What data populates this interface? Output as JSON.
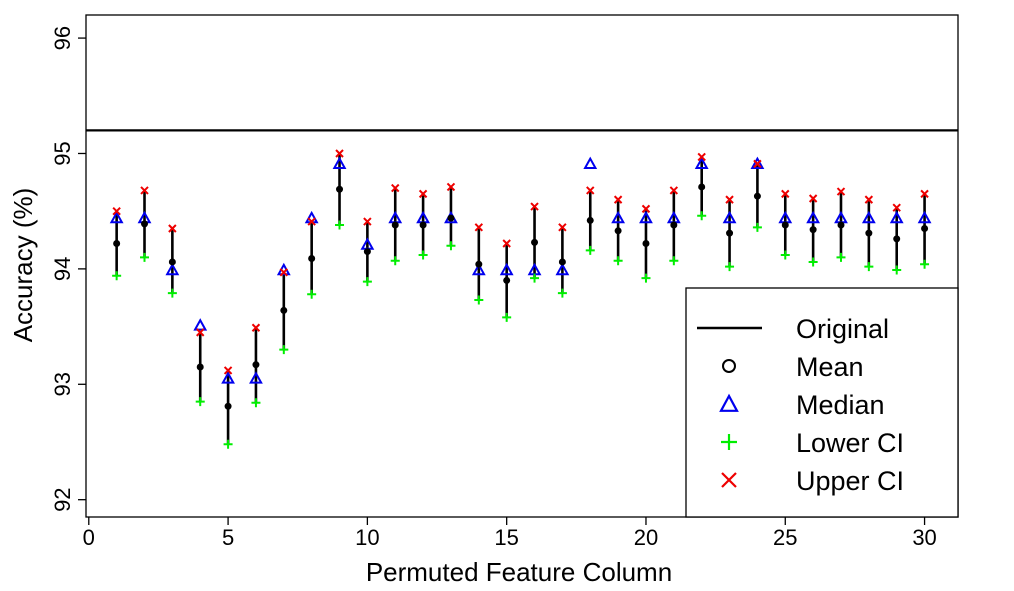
{
  "chart_data": {
    "type": "scatter",
    "xlabel": "Permuted Feature Column",
    "ylabel": "Accuracy (%)",
    "xlim": [
      -0.1,
      31.2
    ],
    "ylim": [
      91.85,
      96.2
    ],
    "xticks": [
      "0",
      "5",
      "10",
      "15",
      "20",
      "25",
      "30"
    ],
    "yticks": [
      "92",
      "93",
      "94",
      "95",
      "96"
    ],
    "grid": false,
    "legend_position": "bottom-right",
    "reference_line": {
      "name": "Original",
      "value": 95.2,
      "color": "#000000"
    },
    "x": [
      1,
      2,
      3,
      4,
      5,
      6,
      7,
      8,
      9,
      10,
      11,
      12,
      13,
      14,
      15,
      16,
      17,
      18,
      19,
      20,
      21,
      22,
      23,
      24,
      25,
      26,
      27,
      28,
      29,
      30
    ],
    "series": [
      {
        "name": "Mean",
        "marker": "circle",
        "color": "#000000",
        "values": [
          94.22,
          94.39,
          94.06,
          93.15,
          92.81,
          93.17,
          93.64,
          94.09,
          94.69,
          94.15,
          94.38,
          94.38,
          94.44,
          94.04,
          93.9,
          94.23,
          94.06,
          94.42,
          94.33,
          94.22,
          94.38,
          94.71,
          94.31,
          94.63,
          94.38,
          94.34,
          94.38,
          94.31,
          94.26,
          94.35
        ]
      },
      {
        "name": "Median",
        "marker": "triangle",
        "color": "#0000ee",
        "values": [
          94.44,
          94.44,
          93.99,
          93.51,
          93.05,
          93.05,
          93.99,
          94.44,
          94.91,
          94.21,
          94.44,
          94.44,
          94.44,
          93.99,
          93.99,
          93.99,
          93.99,
          94.91,
          94.44,
          94.44,
          94.44,
          94.91,
          94.44,
          94.91,
          94.44,
          94.44,
          94.44,
          94.44,
          94.44,
          94.44
        ]
      },
      {
        "name": "Lower CI",
        "marker": "plus",
        "color": "#00ee00",
        "values": [
          93.94,
          94.1,
          93.79,
          92.85,
          92.48,
          92.84,
          93.3,
          93.78,
          94.38,
          93.89,
          94.07,
          94.12,
          94.2,
          93.73,
          93.58,
          93.92,
          93.79,
          94.16,
          94.07,
          93.92,
          94.07,
          94.46,
          94.02,
          94.36,
          94.12,
          94.06,
          94.1,
          94.02,
          93.99,
          94.04
        ]
      },
      {
        "name": "Upper CI",
        "marker": "x",
        "color": "#ee0000",
        "values": [
          94.5,
          94.68,
          94.35,
          93.45,
          93.12,
          93.49,
          93.97,
          94.41,
          95.0,
          94.41,
          94.7,
          94.65,
          94.71,
          94.36,
          94.22,
          94.54,
          94.36,
          94.68,
          94.6,
          94.52,
          94.68,
          94.97,
          94.6,
          94.91,
          94.65,
          94.61,
          94.67,
          94.6,
          94.53,
          94.65
        ]
      }
    ],
    "legend": [
      "Original",
      "Mean",
      "Median",
      "Lower CI",
      "Upper CI"
    ]
  }
}
